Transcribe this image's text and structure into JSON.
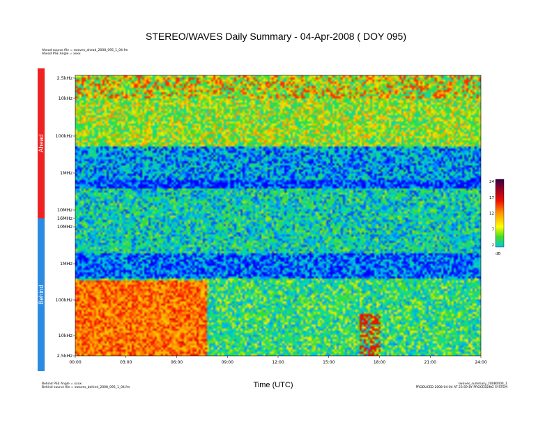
{
  "title": "STEREO/WAVES Daily Summary - 04-Apr-2008 ( DOY 095)",
  "ahead_info": [
    "Ahead source file = swaves_ahead_2008_095_1_04.fm",
    "Ahead PSE Angle = xxxx"
  ],
  "behind_info": [
    "Behind PSE Angle = xxxx",
    "Behind source file = swaves_behind_2008_095_1_04.fm"
  ],
  "footer_right": [
    "swaves_summary_20080404_1",
    "PRODUCED 2008-04-04 AT 23:59 BY PROCESSING SYSTEM"
  ],
  "chart_data": {
    "type": "heatmap",
    "title": "STEREO/WAVES Daily Summary - 04-Apr-2008 ( DOY 095)",
    "xlabel": "Time (UTC)",
    "x_ticks": [
      "00:00",
      "03:00",
      "06:00",
      "09:00",
      "12:00",
      "15:00",
      "18:00",
      "21:00",
      "24:00"
    ],
    "xlim": [
      0,
      24
    ],
    "panels": [
      {
        "name": "Ahead",
        "color": "#ee2222",
        "y_ticks": [
          "2.5kHz",
          "10kHz",
          "100kHz",
          "1MHz",
          "10MHz",
          "16MHz"
        ],
        "y_scale": "log"
      },
      {
        "name": "Behind",
        "color": "#2b8be0",
        "y_ticks": [
          "10MHz",
          "1MHz",
          "100kHz",
          "10kHz",
          "2.5kHz"
        ],
        "y_scale": "log"
      }
    ],
    "colorbar": {
      "ticks": [
        "24",
        "17",
        "12",
        "7",
        "2"
      ],
      "unit": "dB",
      "range": [
        2,
        24
      ]
    },
    "colors": {
      "background": "#0000ff",
      "low": "#00c8e6",
      "mid": "#ffff00",
      "high": "#ff0000"
    }
  }
}
